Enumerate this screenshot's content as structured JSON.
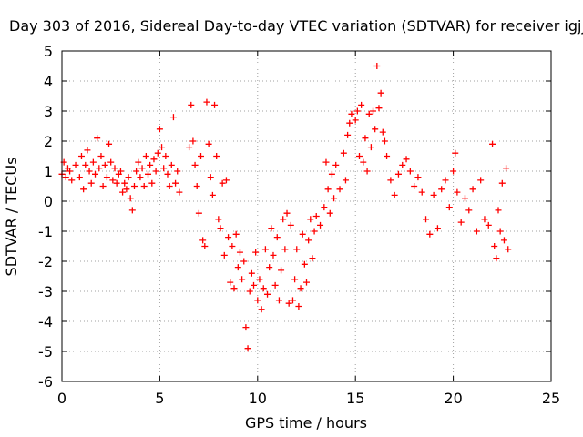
{
  "chart_data": {
    "type": "scatter",
    "title": "Day 303 of 2016, Sidereal Day-to-day VTEC variation (SDTVAR) for receiver igjj",
    "xlabel": "GPS time / hours",
    "ylabel": "SDTVAR / TECUs",
    "xlim": [
      0,
      25
    ],
    "ylim": [
      -6,
      5
    ],
    "xticks": [
      0,
      5,
      10,
      15,
      20,
      25
    ],
    "yticks": [
      -6,
      -5,
      -4,
      -3,
      -2,
      -1,
      0,
      1,
      2,
      3,
      4,
      5
    ],
    "grid": true,
    "marker": "plus",
    "color": "#ff0000",
    "series": [
      {
        "name": "SDTVAR",
        "points": [
          [
            0.0,
            0.9
          ],
          [
            0.1,
            1.3
          ],
          [
            0.2,
            0.8
          ],
          [
            0.3,
            1.1
          ],
          [
            0.4,
            1.0
          ],
          [
            0.5,
            0.7
          ],
          [
            0.7,
            1.2
          ],
          [
            0.9,
            0.8
          ],
          [
            1.0,
            1.5
          ],
          [
            1.1,
            0.4
          ],
          [
            1.2,
            1.2
          ],
          [
            1.3,
            1.7
          ],
          [
            1.4,
            1.0
          ],
          [
            1.5,
            0.6
          ],
          [
            1.6,
            1.3
          ],
          [
            1.7,
            0.9
          ],
          [
            1.8,
            2.1
          ],
          [
            1.9,
            1.1
          ],
          [
            2.0,
            1.5
          ],
          [
            2.1,
            0.5
          ],
          [
            2.2,
            1.2
          ],
          [
            2.3,
            0.8
          ],
          [
            2.4,
            1.9
          ],
          [
            2.5,
            1.3
          ],
          [
            2.6,
            0.7
          ],
          [
            2.7,
            1.1
          ],
          [
            2.8,
            0.6
          ],
          [
            2.9,
            0.9
          ],
          [
            3.0,
            1.0
          ],
          [
            3.1,
            0.3
          ],
          [
            3.2,
            0.6
          ],
          [
            3.3,
            0.4
          ],
          [
            3.4,
            0.8
          ],
          [
            3.5,
            0.1
          ],
          [
            3.6,
            -0.3
          ],
          [
            3.7,
            0.5
          ],
          [
            3.8,
            1.0
          ],
          [
            3.9,
            1.3
          ],
          [
            4.0,
            0.8
          ],
          [
            4.1,
            1.1
          ],
          [
            4.2,
            0.5
          ],
          [
            4.3,
            1.5
          ],
          [
            4.4,
            0.9
          ],
          [
            4.5,
            1.2
          ],
          [
            4.6,
            0.6
          ],
          [
            4.7,
            1.4
          ],
          [
            4.8,
            1.0
          ],
          [
            4.9,
            1.6
          ],
          [
            5.0,
            2.4
          ],
          [
            5.1,
            1.8
          ],
          [
            5.2,
            1.1
          ],
          [
            5.3,
            1.5
          ],
          [
            5.4,
            0.9
          ],
          [
            5.5,
            0.5
          ],
          [
            5.6,
            1.2
          ],
          [
            5.7,
            2.8
          ],
          [
            5.8,
            0.6
          ],
          [
            5.9,
            1.0
          ],
          [
            6.0,
            0.3
          ],
          [
            6.5,
            1.8
          ],
          [
            6.6,
            3.2
          ],
          [
            6.7,
            2.0
          ],
          [
            6.8,
            1.2
          ],
          [
            6.9,
            0.5
          ],
          [
            7.0,
            -0.4
          ],
          [
            7.1,
            1.5
          ],
          [
            7.2,
            -1.3
          ],
          [
            7.3,
            -1.5
          ],
          [
            7.4,
            3.3
          ],
          [
            7.5,
            1.9
          ],
          [
            7.6,
            0.8
          ],
          [
            7.7,
            0.2
          ],
          [
            7.8,
            3.2
          ],
          [
            7.9,
            1.5
          ],
          [
            8.0,
            -0.6
          ],
          [
            8.1,
            -0.9
          ],
          [
            8.2,
            0.6
          ],
          [
            8.3,
            -1.8
          ],
          [
            8.4,
            0.7
          ],
          [
            8.5,
            -1.2
          ],
          [
            8.6,
            -2.7
          ],
          [
            8.7,
            -1.5
          ],
          [
            8.8,
            -2.9
          ],
          [
            8.9,
            -1.1
          ],
          [
            9.0,
            -2.2
          ],
          [
            9.1,
            -1.7
          ],
          [
            9.2,
            -2.6
          ],
          [
            9.3,
            -2.0
          ],
          [
            9.4,
            -4.2
          ],
          [
            9.5,
            -4.9
          ],
          [
            9.6,
            -3.0
          ],
          [
            9.7,
            -2.4
          ],
          [
            9.8,
            -2.8
          ],
          [
            9.9,
            -1.7
          ],
          [
            10.0,
            -3.3
          ],
          [
            10.1,
            -2.6
          ],
          [
            10.2,
            -3.6
          ],
          [
            10.3,
            -2.9
          ],
          [
            10.4,
            -1.6
          ],
          [
            10.5,
            -3.1
          ],
          [
            10.6,
            -2.2
          ],
          [
            10.7,
            -0.9
          ],
          [
            10.8,
            -1.8
          ],
          [
            10.9,
            -2.8
          ],
          [
            11.0,
            -1.2
          ],
          [
            11.1,
            -3.3
          ],
          [
            11.2,
            -2.3
          ],
          [
            11.3,
            -0.6
          ],
          [
            11.4,
            -1.6
          ],
          [
            11.5,
            -0.4
          ],
          [
            11.6,
            -3.4
          ],
          [
            11.7,
            -0.8
          ],
          [
            11.8,
            -3.3
          ],
          [
            11.9,
            -2.6
          ],
          [
            12.0,
            -1.6
          ],
          [
            12.1,
            -3.5
          ],
          [
            12.2,
            -2.9
          ],
          [
            12.3,
            -1.1
          ],
          [
            12.4,
            -2.1
          ],
          [
            12.5,
            -2.7
          ],
          [
            12.6,
            -1.3
          ],
          [
            12.7,
            -0.6
          ],
          [
            12.8,
            -1.9
          ],
          [
            12.9,
            -1.0
          ],
          [
            13.0,
            -0.5
          ],
          [
            13.2,
            -0.8
          ],
          [
            13.4,
            -0.2
          ],
          [
            13.5,
            1.3
          ],
          [
            13.6,
            0.4
          ],
          [
            13.7,
            -0.4
          ],
          [
            13.8,
            0.9
          ],
          [
            13.9,
            0.1
          ],
          [
            14.0,
            1.2
          ],
          [
            14.2,
            0.4
          ],
          [
            14.4,
            1.6
          ],
          [
            14.5,
            0.7
          ],
          [
            14.6,
            2.2
          ],
          [
            14.7,
            2.6
          ],
          [
            14.8,
            2.9
          ],
          [
            15.0,
            2.7
          ],
          [
            15.1,
            3.0
          ],
          [
            15.2,
            1.5
          ],
          [
            15.3,
            3.2
          ],
          [
            15.4,
            1.3
          ],
          [
            15.5,
            2.1
          ],
          [
            15.6,
            1.0
          ],
          [
            15.7,
            2.9
          ],
          [
            15.8,
            1.8
          ],
          [
            15.9,
            3.0
          ],
          [
            16.0,
            2.4
          ],
          [
            16.1,
            4.5
          ],
          [
            16.2,
            3.1
          ],
          [
            16.3,
            3.6
          ],
          [
            16.4,
            2.3
          ],
          [
            16.5,
            2.0
          ],
          [
            16.6,
            1.5
          ],
          [
            16.8,
            0.7
          ],
          [
            17.0,
            0.2
          ],
          [
            17.2,
            0.9
          ],
          [
            17.4,
            1.2
          ],
          [
            17.6,
            1.4
          ],
          [
            17.8,
            1.0
          ],
          [
            18.0,
            0.5
          ],
          [
            18.2,
            0.8
          ],
          [
            18.4,
            0.3
          ],
          [
            18.6,
            -0.6
          ],
          [
            18.8,
            -1.1
          ],
          [
            19.0,
            0.2
          ],
          [
            19.2,
            -0.9
          ],
          [
            19.4,
            0.4
          ],
          [
            19.6,
            0.7
          ],
          [
            19.8,
            -0.2
          ],
          [
            20.0,
            1.0
          ],
          [
            20.1,
            1.6
          ],
          [
            20.2,
            0.3
          ],
          [
            20.4,
            -0.7
          ],
          [
            20.6,
            0.1
          ],
          [
            20.8,
            -0.3
          ],
          [
            21.0,
            0.4
          ],
          [
            21.2,
            -1.0
          ],
          [
            21.4,
            0.7
          ],
          [
            21.6,
            -0.6
          ],
          [
            21.8,
            -0.8
          ],
          [
            22.0,
            1.9
          ],
          [
            22.1,
            -1.5
          ],
          [
            22.2,
            -1.9
          ],
          [
            22.3,
            -0.3
          ],
          [
            22.4,
            -1.0
          ],
          [
            22.5,
            0.6
          ],
          [
            22.6,
            -1.3
          ],
          [
            22.7,
            1.1
          ],
          [
            22.8,
            -1.6
          ]
        ]
      }
    ]
  }
}
